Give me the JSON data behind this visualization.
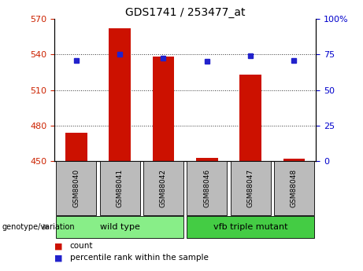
{
  "title": "GDS1741 / 253477_at",
  "samples": [
    "GSM88040",
    "GSM88041",
    "GSM88042",
    "GSM88046",
    "GSM88047",
    "GSM88048"
  ],
  "bar_values": [
    474,
    562,
    538,
    453,
    523,
    452
  ],
  "percentile_values": [
    535,
    540,
    537,
    534,
    539,
    535
  ],
  "ylim_left": [
    450,
    570
  ],
  "ylim_right": [
    0,
    100
  ],
  "yticks_left": [
    450,
    480,
    510,
    540,
    570
  ],
  "yticks_right": [
    0,
    25,
    50,
    75,
    100
  ],
  "bar_color": "#cc1100",
  "dot_color": "#2222cc",
  "bar_baseline": 450,
  "group_defs": [
    {
      "indices": [
        0,
        1,
        2
      ],
      "label": "wild type",
      "color": "#88ee88"
    },
    {
      "indices": [
        3,
        4,
        5
      ],
      "label": "vfb triple mutant",
      "color": "#44cc44"
    }
  ],
  "genotype_label": "genotype/variation",
  "legend_count_label": "count",
  "legend_percentile_label": "percentile rank within the sample",
  "tick_color_left": "#cc2200",
  "tick_color_right": "#0000cc",
  "sample_box_color": "#bbbbbb",
  "grid_color": "#333333"
}
